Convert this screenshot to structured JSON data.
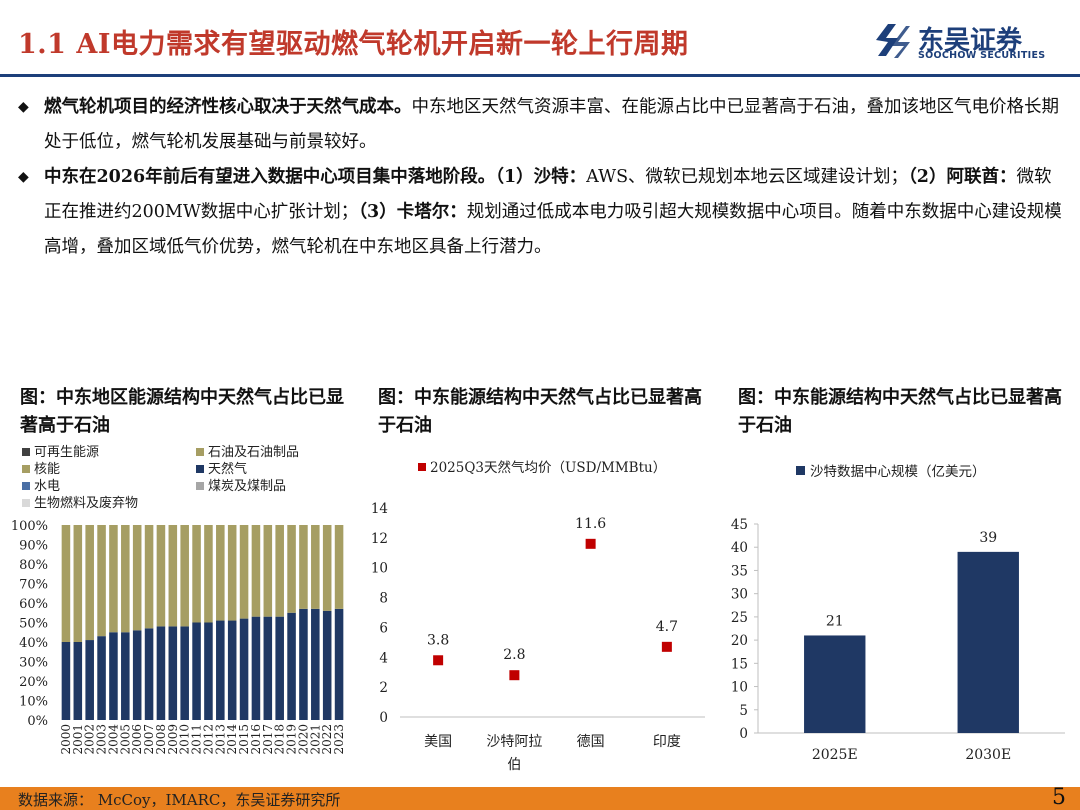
{
  "header": {
    "title": "1.1 AI电力需求有望驱动燃气轮机开启新一轮上行周期",
    "logo_cn": "东吴证券",
    "logo_en": "SOOCHOW SECURITIES"
  },
  "bullets": [
    {
      "bold": "燃气轮机项目的经济性核心取决于天然气成本。",
      "rest": "中东地区天然气资源丰富、在能源占比中已显著高于石油，叠加该地区气电价格长期处于低位，燃气轮机发展基础与前景较好。"
    },
    {
      "bold": "中东在2026年前后有望进入数据中心项目集中落地阶段。",
      "p1_label": "（1）沙特：",
      "p1_text": "AWS、微软已规划本地云区域建设计划；",
      "p2_label": "（2）阿联酋：",
      "p2_text": "微软正在推进约200MW数据中心扩张计划；",
      "p3_label": "（3）卡塔尔：",
      "p3_text": "规划通过低成本电力吸引超大规模数据中心项目。随着中东数据中心建设规模高增，叠加区域低气价优势，燃气轮机在中东地区具备上行潜力。"
    }
  ],
  "charts": {
    "c1_title": "图：中东地区能源结构中天然气占比已显著高于石油",
    "c2_title": "图：中东能源结构中天然气占比已显著高于石油",
    "c3_title": "图：中东能源结构中天然气占比已显著高于石油"
  },
  "colors": {
    "title_red": "#c0392b",
    "navy": "#1f3864",
    "olive": "#a69e63",
    "marker_red": "#c00000",
    "footer_orange": "#e8801e",
    "renewable": "#404040",
    "hydro": "#4a6fa5",
    "coal": "#a6a6a6",
    "bio": "#d9d9d9"
  },
  "chart_data": [
    {
      "type": "bar",
      "stacked": true,
      "legend": [
        "可再生能源",
        "石油及石油制品",
        "核能",
        "天然气",
        "水电",
        "煤炭及煤制品",
        "生物燃料及废弃物"
      ],
      "legend_placement": "top",
      "categories": [
        "2000",
        "2001",
        "2002",
        "2003",
        "2004",
        "2005",
        "2006",
        "2007",
        "2008",
        "2009",
        "2010",
        "2011",
        "2012",
        "2013",
        "2014",
        "2015",
        "2016",
        "2017",
        "2018",
        "2019",
        "2020",
        "2021",
        "2022",
        "2023"
      ],
      "series": [
        {
          "name": "天然气",
          "values": [
            40,
            40,
            41,
            43,
            45,
            45,
            46,
            47,
            48,
            48,
            48,
            50,
            50,
            51,
            51,
            52,
            53,
            53,
            53,
            55,
            57,
            57,
            56,
            57
          ]
        },
        {
          "name": "石油及石油制品",
          "values": [
            60,
            60,
            59,
            57,
            55,
            55,
            54,
            53,
            52,
            52,
            52,
            50,
            50,
            49,
            49,
            48,
            47,
            47,
            47,
            45,
            43,
            43,
            44,
            43
          ]
        }
      ],
      "yticks": [
        "0%",
        "10%",
        "20%",
        "30%",
        "40%",
        "50%",
        "60%",
        "70%",
        "80%",
        "90%",
        "100%"
      ],
      "ylim": [
        0,
        100
      ]
    },
    {
      "type": "scatter",
      "legend": [
        "2025Q3天然气均价（USD/MMBtu）"
      ],
      "legend_placement": "top",
      "categories": [
        "美国",
        "沙特阿拉伯",
        "德国",
        "印度"
      ],
      "values": [
        3.8,
        2.8,
        11.6,
        4.7
      ],
      "data_labels": [
        "3.8",
        "2.8",
        "11.6",
        "4.7"
      ],
      "yticks": [
        "0",
        "2",
        "4",
        "6",
        "8",
        "10",
        "12",
        "14"
      ],
      "ylim": [
        0,
        14
      ]
    },
    {
      "type": "bar",
      "legend": [
        "沙特数据中心规模（亿美元）"
      ],
      "legend_placement": "top",
      "categories": [
        "2025E",
        "2030E"
      ],
      "values": [
        21,
        39
      ],
      "data_labels": [
        "21",
        "39"
      ],
      "yticks": [
        "0",
        "5",
        "10",
        "15",
        "20",
        "25",
        "30",
        "35",
        "40",
        "45"
      ],
      "ylim": [
        0,
        45
      ]
    }
  ],
  "footer": {
    "source": "数据来源：  McCoy，IMARC，东吴证券研究所",
    "page": "5"
  }
}
